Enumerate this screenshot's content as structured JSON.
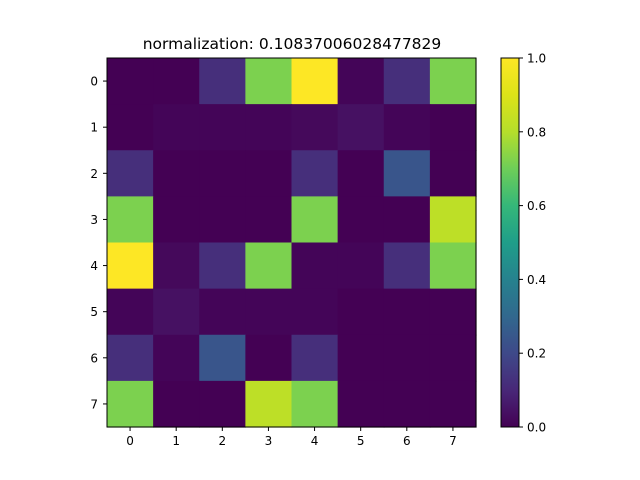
{
  "chart_data": {
    "type": "heatmap",
    "title": "normalization:  0.10837006028477829",
    "x_ticks": [
      "0",
      "1",
      "2",
      "3",
      "4",
      "5",
      "6",
      "7"
    ],
    "y_ticks": [
      "0",
      "1",
      "2",
      "3",
      "4",
      "5",
      "6",
      "7"
    ],
    "colormap": "viridis",
    "colorbar": {
      "range": [
        0.0,
        1.0
      ],
      "ticks": [
        "0.0",
        "0.2",
        "0.4",
        "0.6",
        "0.8",
        "1.0"
      ]
    },
    "values": [
      [
        0.0,
        0.0,
        0.12,
        0.72,
        1.0,
        0.01,
        0.12,
        0.72
      ],
      [
        0.0,
        0.01,
        0.01,
        0.01,
        0.02,
        0.04,
        0.01,
        0.0
      ],
      [
        0.12,
        0.0,
        0.0,
        0.0,
        0.12,
        0.0,
        0.24,
        0.0
      ],
      [
        0.72,
        0.0,
        0.0,
        0.0,
        0.72,
        0.0,
        0.0,
        0.82
      ],
      [
        1.0,
        0.02,
        0.12,
        0.72,
        0.01,
        0.01,
        0.12,
        0.72
      ],
      [
        0.01,
        0.04,
        0.01,
        0.01,
        0.01,
        0.0,
        0.0,
        0.0
      ],
      [
        0.12,
        0.01,
        0.24,
        0.0,
        0.12,
        0.0,
        0.0,
        0.0
      ],
      [
        0.72,
        0.0,
        0.0,
        0.82,
        0.72,
        0.0,
        0.0,
        0.0
      ]
    ]
  }
}
